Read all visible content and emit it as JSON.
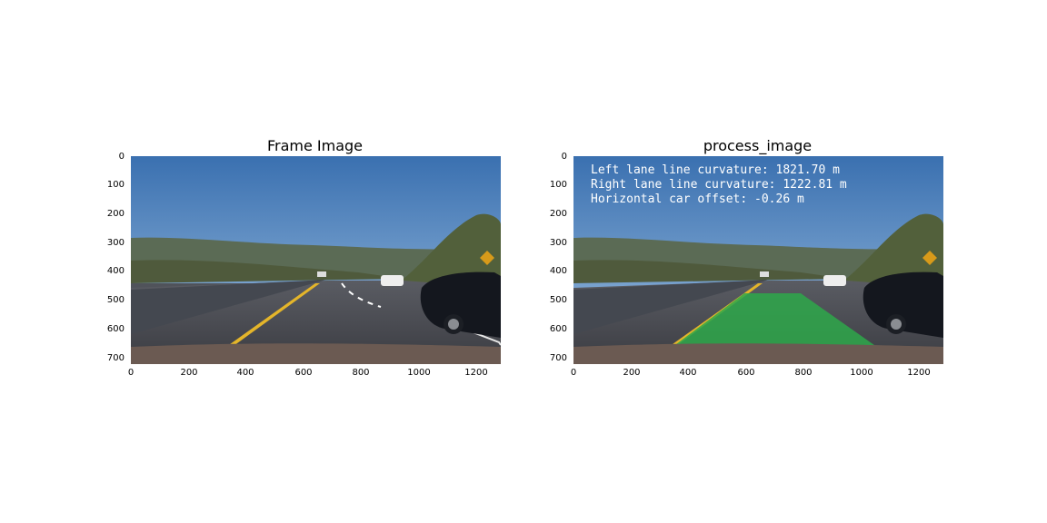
{
  "figure": {
    "panels": [
      {
        "title": "Frame Image",
        "x_ticks": [
          "0",
          "200",
          "400",
          "600",
          "800",
          "1000",
          "1200"
        ],
        "y_ticks": [
          "0",
          "100",
          "200",
          "300",
          "400",
          "500",
          "600",
          "700"
        ]
      },
      {
        "title": "process_image",
        "x_ticks": [
          "0",
          "200",
          "400",
          "600",
          "800",
          "1000",
          "1200"
        ],
        "y_ticks": [
          "0",
          "100",
          "200",
          "300",
          "400",
          "500",
          "600",
          "700"
        ],
        "overlay": {
          "line1": "Left lane line curvature: 1821.70 m",
          "line2": "Right lane line curvature: 1222.81 m",
          "line3": "Horizontal car offset: -0.26 m",
          "lane_fill_color": "#2ea84a"
        }
      }
    ]
  }
}
